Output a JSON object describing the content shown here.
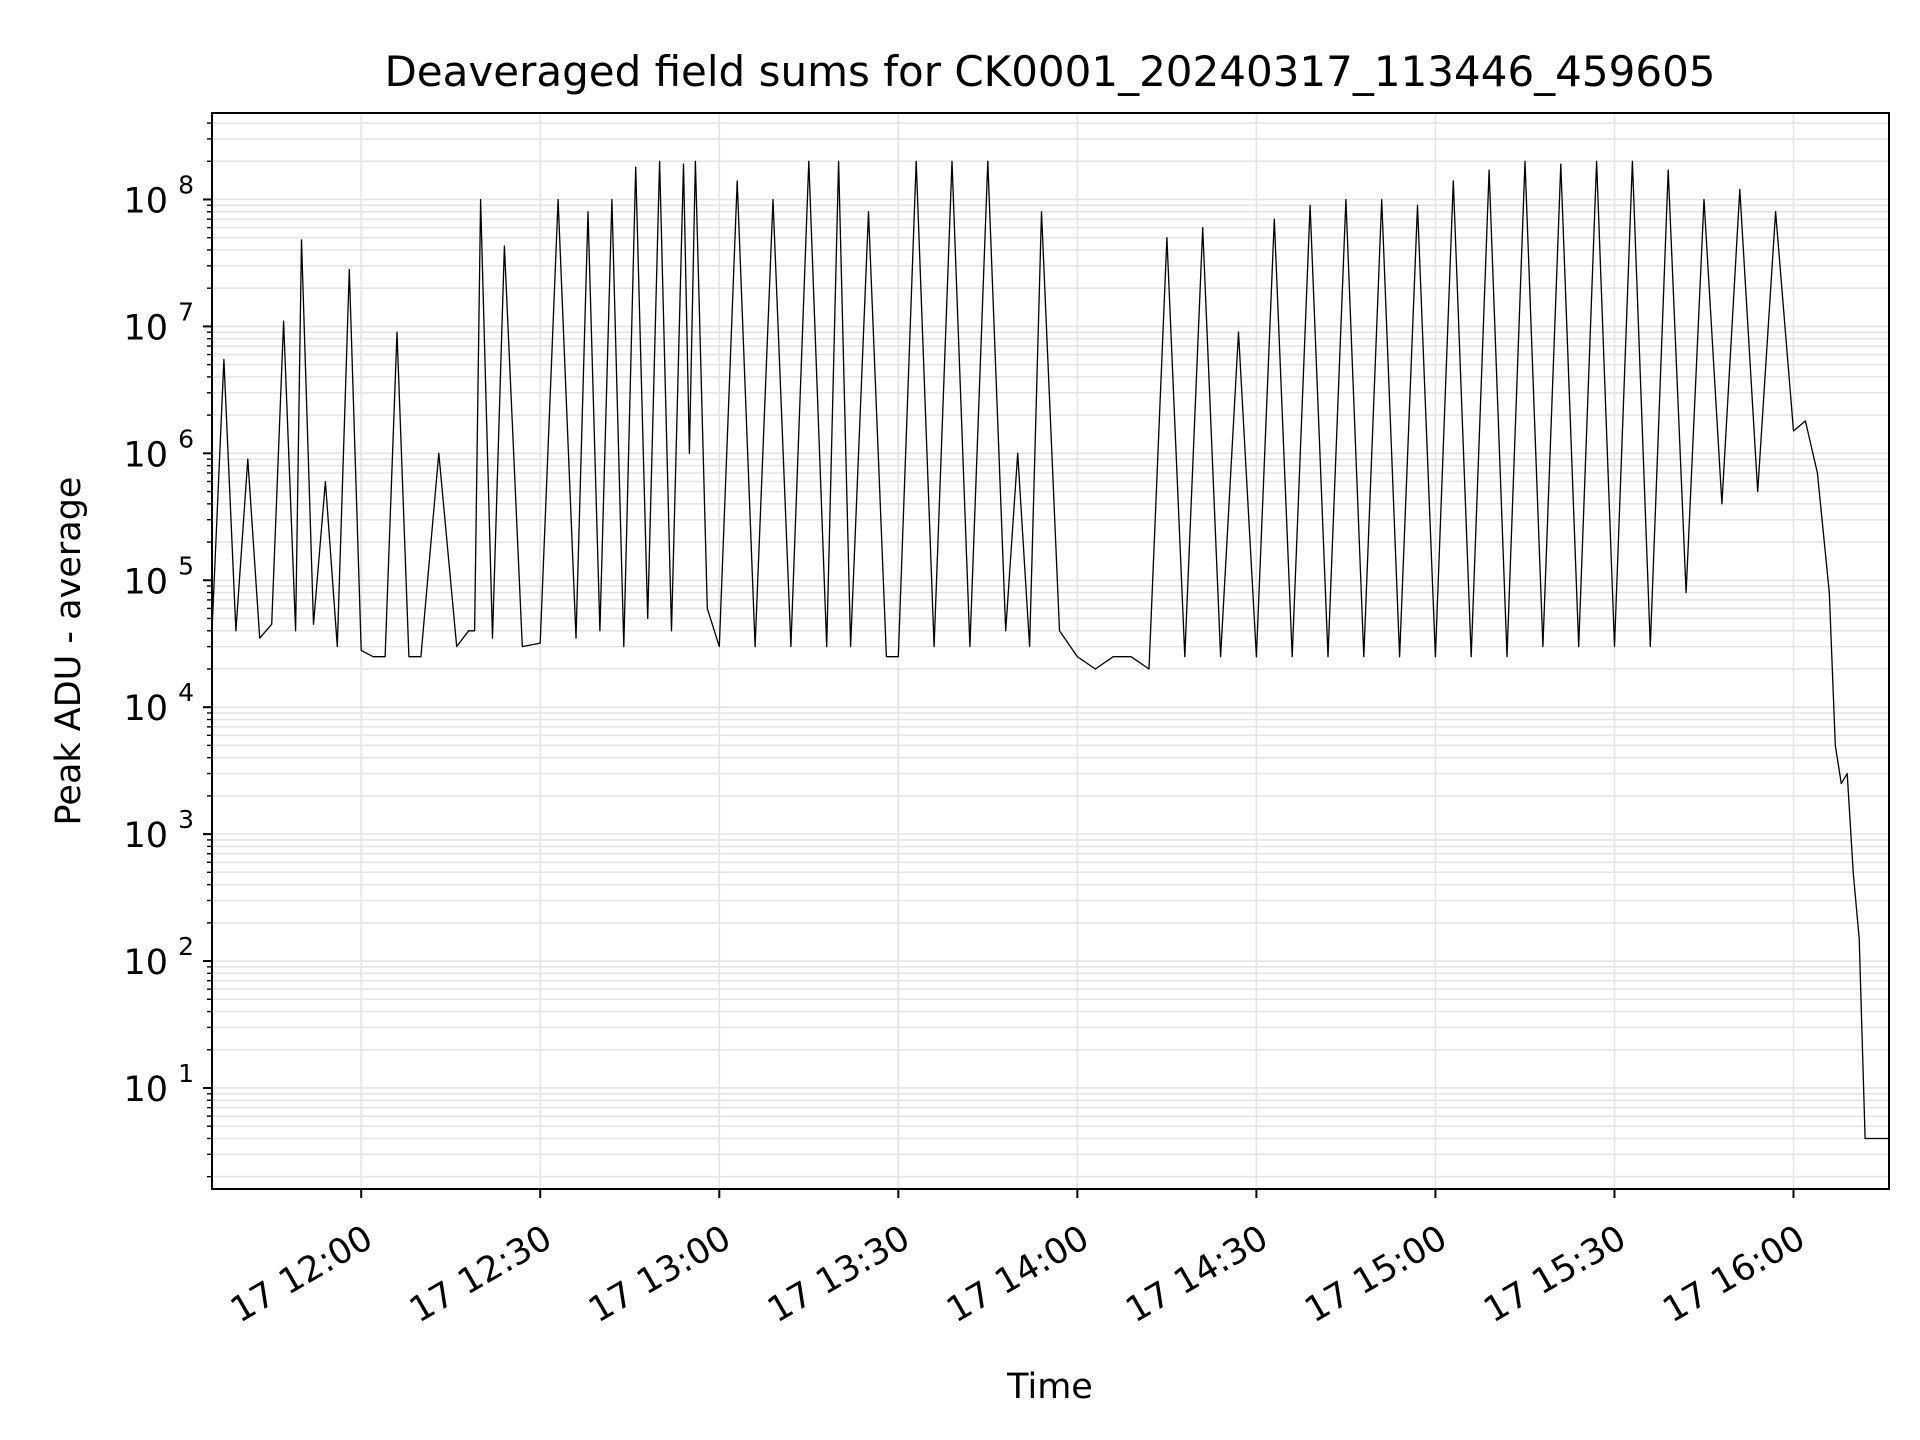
{
  "chart_data": {
    "type": "line",
    "title": "Deaveraged field sums for CK0001_20240317_113446_459605",
    "xlabel": "Time",
    "ylabel": "Peak ADU - average",
    "yscale": "log",
    "grid": "on (major and minor)",
    "x_tick_labels": [
      "17 12:00",
      "17 12:30",
      "17 13:00",
      "17 13:30",
      "17 14:00",
      "17 14:30",
      "17 15:00",
      "17 15:30",
      "17 16:00"
    ],
    "y_tick_labels": [
      {
        "base": "10",
        "exp": "1"
      },
      {
        "base": "10",
        "exp": "2"
      },
      {
        "base": "10",
        "exp": "3"
      },
      {
        "base": "10",
        "exp": "4"
      },
      {
        "base": "10",
        "exp": "5"
      },
      {
        "base": "10",
        "exp": "6"
      },
      {
        "base": "10",
        "exp": "7"
      },
      {
        "base": "10",
        "exp": "8"
      }
    ],
    "xlim": [
      "2024-03-17 11:35",
      "2024-03-17 16:16"
    ],
    "ylim": [
      1.6,
      480000000
    ],
    "line_color": "#000000",
    "series": [
      {
        "x": [
          "2024-03-17 11:35",
          "2024-03-17 11:37",
          "2024-03-17 11:39",
          "2024-03-17 11:41",
          "2024-03-17 11:43",
          "2024-03-17 11:45",
          "2024-03-17 11:47",
          "2024-03-17 11:49",
          "2024-03-17 11:50",
          "2024-03-17 11:52",
          "2024-03-17 11:54",
          "2024-03-17 11:56",
          "2024-03-17 11:58",
          "2024-03-17 12:00",
          "2024-03-17 12:02",
          "2024-03-17 12:04",
          "2024-03-17 12:06",
          "2024-03-17 12:08",
          "2024-03-17 12:10",
          "2024-03-17 12:13",
          "2024-03-17 12:16",
          "2024-03-17 12:18",
          "2024-03-17 12:19",
          "2024-03-17 12:20",
          "2024-03-17 12:22",
          "2024-03-17 12:24",
          "2024-03-17 12:27",
          "2024-03-17 12:30",
          "2024-03-17 12:33",
          "2024-03-17 12:36",
          "2024-03-17 12:38",
          "2024-03-17 12:40",
          "2024-03-17 12:42",
          "2024-03-17 12:44",
          "2024-03-17 12:46",
          "2024-03-17 12:48",
          "2024-03-17 12:50",
          "2024-03-17 12:52",
          "2024-03-17 12:54",
          "2024-03-17 12:55",
          "2024-03-17 12:56",
          "2024-03-17 12:58",
          "2024-03-17 13:00",
          "2024-03-17 13:03",
          "2024-03-17 13:06",
          "2024-03-17 13:09",
          "2024-03-17 13:12",
          "2024-03-17 13:15",
          "2024-03-17 13:18",
          "2024-03-17 13:20",
          "2024-03-17 13:22",
          "2024-03-17 13:25",
          "2024-03-17 13:28",
          "2024-03-17 13:30",
          "2024-03-17 13:33",
          "2024-03-17 13:36",
          "2024-03-17 13:39",
          "2024-03-17 13:42",
          "2024-03-17 13:45",
          "2024-03-17 13:48",
          "2024-03-17 13:50",
          "2024-03-17 13:52",
          "2024-03-17 13:54",
          "2024-03-17 13:57",
          "2024-03-17 14:00",
          "2024-03-17 14:03",
          "2024-03-17 14:06",
          "2024-03-17 14:09",
          "2024-03-17 14:12",
          "2024-03-17 14:15",
          "2024-03-17 14:18",
          "2024-03-17 14:21",
          "2024-03-17 14:24",
          "2024-03-17 14:27",
          "2024-03-17 14:30",
          "2024-03-17 14:33",
          "2024-03-17 14:36",
          "2024-03-17 14:39",
          "2024-03-17 14:42",
          "2024-03-17 14:45",
          "2024-03-17 14:48",
          "2024-03-17 14:51",
          "2024-03-17 14:54",
          "2024-03-17 14:57",
          "2024-03-17 15:00",
          "2024-03-17 15:03",
          "2024-03-17 15:06",
          "2024-03-17 15:09",
          "2024-03-17 15:12",
          "2024-03-17 15:15",
          "2024-03-17 15:18",
          "2024-03-17 15:21",
          "2024-03-17 15:24",
          "2024-03-17 15:27",
          "2024-03-17 15:30",
          "2024-03-17 15:33",
          "2024-03-17 15:36",
          "2024-03-17 15:39",
          "2024-03-17 15:42",
          "2024-03-17 15:45",
          "2024-03-17 15:48",
          "2024-03-17 15:51",
          "2024-03-17 15:54",
          "2024-03-17 15:57",
          "2024-03-17 16:00",
          "2024-03-17 16:02",
          "2024-03-17 16:04",
          "2024-03-17 16:06",
          "2024-03-17 16:07",
          "2024-03-17 16:08",
          "2024-03-17 16:09",
          "2024-03-17 16:10",
          "2024-03-17 16:11",
          "2024-03-17 16:12",
          "2024-03-17 16:13",
          "2024-03-17 16:14",
          "2024-03-17 16:16"
        ],
        "y": [
          40000,
          5500000,
          40000,
          900000,
          35000,
          45000,
          11000000,
          40000,
          48000000,
          45000,
          600000,
          30000,
          28000000,
          28000,
          25000,
          25000,
          9000000,
          25000,
          25000,
          1000000,
          30000,
          40000,
          40000,
          100000000,
          35000,
          43000000,
          30000,
          32000,
          100000000,
          35000,
          80000000,
          40000,
          100000000,
          30000,
          180000000,
          50000,
          200000000,
          40000,
          190000000,
          1000000,
          200000000,
          60000,
          30000,
          140000000,
          30000,
          100000000,
          30000,
          200000000,
          30000,
          200000000,
          30000,
          80000000,
          25000,
          25000,
          200000000,
          30000,
          200000000,
          30000,
          200000000,
          40000,
          1000000,
          30000,
          80000000,
          40000,
          25000,
          20000,
          25000,
          25000,
          20000,
          50000000,
          25000,
          60000000,
          25000,
          9000000,
          25000,
          70000000,
          25000,
          90000000,
          25000,
          100000000,
          25000,
          100000000,
          25000,
          90000000,
          25000,
          140000000,
          25000,
          170000000,
          25000,
          200000000,
          30000,
          190000000,
          30000,
          200000000,
          30000,
          200000000,
          30000,
          170000000,
          80000,
          100000000,
          400000,
          120000000,
          500000,
          80000000,
          1500000,
          1800000,
          700000,
          80000,
          5000,
          2500,
          3000,
          500,
          150,
          4,
          4,
          4,
          4
        ]
      }
    ]
  }
}
